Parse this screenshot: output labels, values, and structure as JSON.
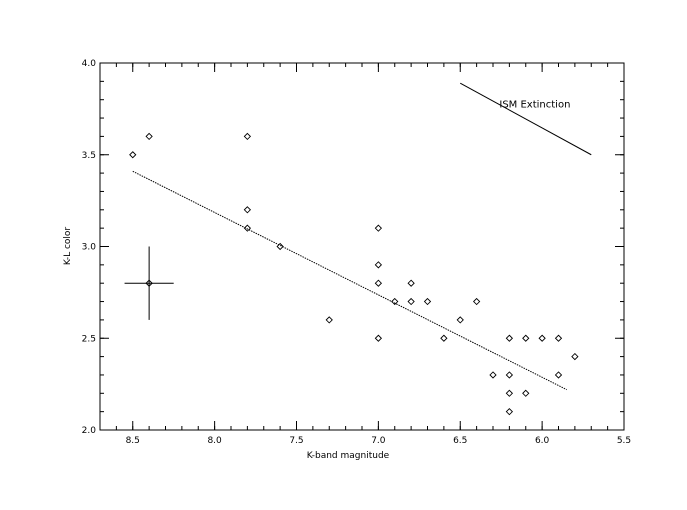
{
  "chart_data": {
    "type": "scatter",
    "xlabel": "K-band magnitude",
    "ylabel": "K-L color",
    "xlim": [
      8.7,
      5.5
    ],
    "ylim": [
      2.0,
      4.0
    ],
    "x_reversed": true,
    "x_ticks": [
      8.5,
      8.0,
      7.5,
      7.0,
      6.5,
      6.0,
      5.5
    ],
    "y_ticks": [
      2.0,
      2.5,
      3.0,
      3.5,
      4.0
    ],
    "x_tick_labels": [
      "8.5",
      "8.0",
      "7.5",
      "7.0",
      "6.5",
      "6.0",
      "5.5"
    ],
    "y_tick_labels": [
      "2.0",
      "2.5",
      "3.0",
      "3.5",
      "4.0"
    ],
    "points": [
      {
        "x": 8.5,
        "y": 3.5
      },
      {
        "x": 8.4,
        "y": 3.6
      },
      {
        "x": 7.8,
        "y": 3.6
      },
      {
        "x": 7.8,
        "y": 3.2
      },
      {
        "x": 7.8,
        "y": 3.1
      },
      {
        "x": 7.6,
        "y": 3.0
      },
      {
        "x": 7.3,
        "y": 2.6
      },
      {
        "x": 7.0,
        "y": 3.1
      },
      {
        "x": 7.0,
        "y": 2.9
      },
      {
        "x": 7.0,
        "y": 2.8
      },
      {
        "x": 7.0,
        "y": 2.5
      },
      {
        "x": 6.9,
        "y": 2.7
      },
      {
        "x": 6.8,
        "y": 2.8
      },
      {
        "x": 6.8,
        "y": 2.7
      },
      {
        "x": 6.7,
        "y": 2.7
      },
      {
        "x": 6.6,
        "y": 2.5
      },
      {
        "x": 6.5,
        "y": 2.6
      },
      {
        "x": 6.4,
        "y": 2.7
      },
      {
        "x": 6.3,
        "y": 2.3
      },
      {
        "x": 6.2,
        "y": 2.5
      },
      {
        "x": 6.2,
        "y": 2.3
      },
      {
        "x": 6.2,
        "y": 2.2
      },
      {
        "x": 6.2,
        "y": 2.1
      },
      {
        "x": 6.1,
        "y": 2.5
      },
      {
        "x": 6.1,
        "y": 2.2
      },
      {
        "x": 6.0,
        "y": 2.5
      },
      {
        "x": 5.9,
        "y": 2.5
      },
      {
        "x": 5.9,
        "y": 2.3
      },
      {
        "x": 5.8,
        "y": 2.4
      }
    ],
    "fit_line": {
      "x": [
        8.5,
        5.85
      ],
      "y": [
        3.41,
        2.22
      ],
      "style": "dotted"
    },
    "error_bar": {
      "x": 8.4,
      "y": 2.8,
      "xerr": 0.15,
      "yerr": 0.2
    },
    "reference_line": {
      "x": [
        6.5,
        5.7
      ],
      "y": [
        3.89,
        3.5
      ],
      "label": "ISM Extinction"
    },
    "grid": false,
    "legend": "none"
  }
}
